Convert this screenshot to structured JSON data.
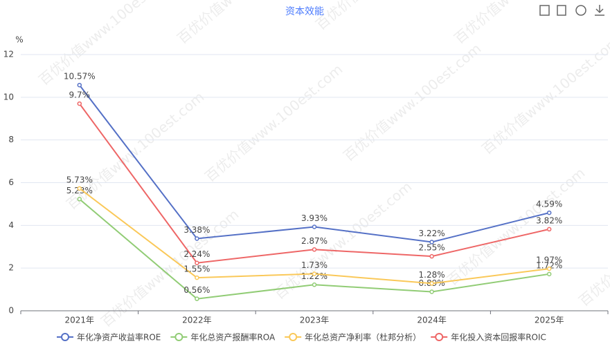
{
  "chart_data": {
    "type": "line",
    "title": "资本效能",
    "y_label": "%",
    "watermark": "百优价值www.100est.com",
    "categories": [
      "2021年",
      "2022年",
      "2023年",
      "2024年",
      "2025年"
    ],
    "series": [
      {
        "name": "年化净资产收益率ROE",
        "color": "#5470c6",
        "values": [
          10.57,
          3.38,
          3.93,
          3.22,
          4.59
        ],
        "value_labels": [
          "10.57%",
          "3.38%",
          "3.93%",
          "3.22%",
          "4.59%"
        ]
      },
      {
        "name": "年化总资产报酬率ROA",
        "color": "#91cc75",
        "values": [
          5.23,
          0.56,
          1.22,
          0.89,
          1.72
        ],
        "value_labels": [
          "5.23%",
          "0.56%",
          "1.22%",
          "0.89%",
          "1.72%"
        ]
      },
      {
        "name": "年化总资产净利率（杜邦分析）",
        "color": "#fac858",
        "values": [
          5.73,
          1.55,
          1.73,
          1.28,
          1.97
        ],
        "value_labels": [
          "5.73%",
          "1.55%",
          "1.73%",
          "1.28%",
          "1.97%"
        ]
      },
      {
        "name": "年化投入资本回报率ROIC",
        "color": "#ee6666",
        "values": [
          9.7,
          2.24,
          2.87,
          2.55,
          3.82
        ],
        "value_labels": [
          "9.7%",
          "2.24%",
          "2.87%",
          "2.55%",
          "3.82%"
        ]
      }
    ],
    "ylim": [
      0,
      12
    ],
    "yticks": [
      0,
      2,
      4,
      6,
      8,
      10,
      12
    ],
    "grid": true,
    "legend": "bottom"
  }
}
